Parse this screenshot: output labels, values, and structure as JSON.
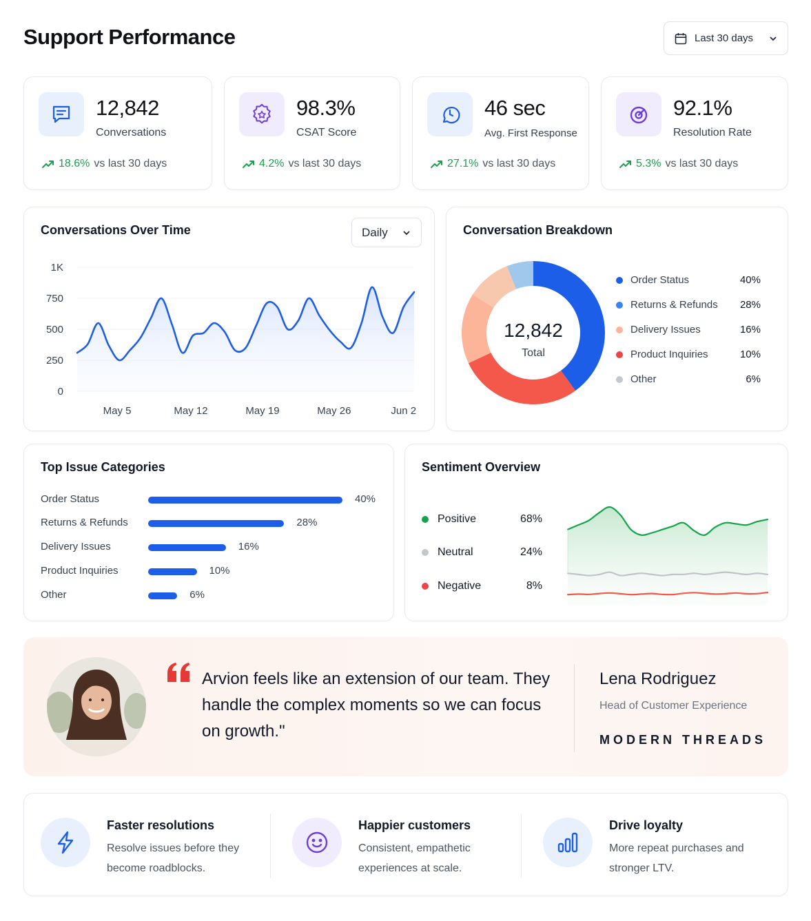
{
  "header": {
    "title": "Support Performance",
    "date_range": "Last 30 days"
  },
  "kpis": [
    {
      "value": "12,842",
      "label": "Conversations",
      "delta": "18.6%",
      "delta_suffix": "vs last 30 days",
      "icon": "chat-icon"
    },
    {
      "value": "98.3%",
      "label": "CSAT Score",
      "delta": "4.2%",
      "delta_suffix": "vs last 30 days",
      "icon": "star-badge-icon"
    },
    {
      "value": "46 sec",
      "label": "Avg. First Response",
      "delta": "27.1%",
      "delta_suffix": "vs last 30 days",
      "icon": "clock-chat-icon"
    },
    {
      "value": "92.1%",
      "label": "Resolution Rate",
      "delta": "5.3%",
      "delta_suffix": "vs last 30 days",
      "icon": "target-icon"
    }
  ],
  "colors": {
    "accent_blue": "#1d5ee8",
    "positive": "#16a34a",
    "negative": "#ef4444",
    "neutral": "#c4c7cc",
    "quote_red": "#e53935"
  },
  "conversations_chart": {
    "title": "Conversations Over Time",
    "granularity": "Daily"
  },
  "chart_data": [
    {
      "type": "area",
      "title": "Conversations Over Time",
      "ylim": [
        0,
        1000
      ],
      "y_ticks": [
        "0",
        "250",
        "500",
        "750",
        "1K"
      ],
      "y_tick_values": [
        0,
        250,
        500,
        750,
        1000
      ],
      "x_tick_labels": [
        "May 5",
        "May 12",
        "May 19",
        "May 26",
        "Jun 2"
      ],
      "x_tick_positions": [
        3.8,
        10.8,
        17.6,
        24.4,
        31.0
      ],
      "grid": true,
      "x": [
        0,
        1,
        2,
        3,
        4,
        5,
        6,
        7,
        8,
        9,
        10,
        11,
        12,
        13,
        14,
        15,
        16,
        17,
        18,
        19,
        20,
        21,
        22,
        23,
        24,
        25,
        26,
        27,
        28,
        29,
        30,
        31,
        32
      ],
      "values": [
        310,
        380,
        550,
        370,
        250,
        330,
        430,
        590,
        750,
        540,
        310,
        450,
        470,
        550,
        480,
        330,
        350,
        530,
        710,
        680,
        500,
        570,
        750,
        610,
        490,
        400,
        350,
        550,
        840,
        600,
        470,
        680,
        800
      ]
    },
    {
      "type": "pie",
      "title": "Conversation Breakdown",
      "center_value": "12,842",
      "center_label": "Total",
      "categories": [
        "Order Status",
        "Returns & Refunds",
        "Delivery Issues",
        "Product Inquiries",
        "Other"
      ],
      "values": [
        40,
        28,
        16,
        10,
        6
      ],
      "labels": [
        "40%",
        "28%",
        "16%",
        "10%",
        "6%"
      ],
      "colors": [
        "#1d5ee8",
        "#f4584a",
        "#fdb59a",
        "#f7c8ae",
        "#9fc8ec"
      ],
      "legend_colors": [
        "#1d5ee8",
        "#3b82f6",
        "#fdb59a",
        "#ef4444",
        "#c4c7cc"
      ],
      "legend": "right"
    },
    {
      "type": "bar",
      "title": "Top Issue Categories",
      "categories": [
        "Order Status",
        "Returns & Refunds",
        "Delivery Issues",
        "Product Inquiries",
        "Other"
      ],
      "values": [
        40,
        28,
        16,
        10,
        6
      ],
      "labels": [
        "40%",
        "28%",
        "16%",
        "10%",
        "6%"
      ]
    },
    {
      "type": "area",
      "title": "Sentiment Overview",
      "legend": "left",
      "series": [
        {
          "name": "Positive",
          "pct": "68%",
          "color": "#16a34a",
          "values": [
            64,
            68,
            72,
            79,
            84,
            77,
            64,
            59,
            61,
            64,
            67,
            70,
            63,
            59,
            66,
            70,
            69,
            68,
            71,
            73
          ]
        },
        {
          "name": "Neutral",
          "pct": "24%",
          "color": "#bfc3c9",
          "values": [
            25,
            24,
            23,
            24,
            26,
            23,
            24,
            25,
            24,
            23,
            24,
            24,
            25,
            24,
            25,
            26,
            25,
            24,
            25,
            24
          ]
        },
        {
          "name": "Negative",
          "pct": "8%",
          "color": "#f4584a",
          "values": [
            6,
            6.5,
            6.2,
            7,
            7.5,
            6.8,
            6,
            6.5,
            7,
            6.2,
            6.1,
            7.2,
            7.8,
            7.1,
            6.5,
            6.8,
            7.5,
            6.8,
            6.9,
            8
          ]
        }
      ]
    }
  ],
  "breakdown": {
    "title": "Conversation Breakdown",
    "center_value": "12,842",
    "center_label": "Total",
    "items": [
      {
        "name": "Order Status",
        "pct": "40%"
      },
      {
        "name": "Returns & Refunds",
        "pct": "28%"
      },
      {
        "name": "Delivery Issues",
        "pct": "16%"
      },
      {
        "name": "Product Inquiries",
        "pct": "10%"
      },
      {
        "name": "Other",
        "pct": "6%"
      }
    ]
  },
  "issues": {
    "title": "Top Issue Categories",
    "items": [
      {
        "name": "Order Status",
        "pct": "40%"
      },
      {
        "name": "Returns & Refunds",
        "pct": "28%"
      },
      {
        "name": "Delivery Issues",
        "pct": "16%"
      },
      {
        "name": "Product Inquiries",
        "pct": "10%"
      },
      {
        "name": "Other",
        "pct": "6%"
      }
    ]
  },
  "sentiment": {
    "title": "Sentiment Overview",
    "items": [
      {
        "name": "Positive",
        "pct": "68%"
      },
      {
        "name": "Neutral",
        "pct": "24%"
      },
      {
        "name": "Negative",
        "pct": "8%"
      }
    ]
  },
  "testimonial": {
    "quote": "Arvion feels like an extension of our team. They handle the complex moments so we can focus on growth.\"",
    "name": "Lena Rodriguez",
    "role": "Head of Customer Experience",
    "company": "MODERN THREADS"
  },
  "features": [
    {
      "title": "Faster resolutions",
      "desc": "Resolve issues before they become roadblocks.",
      "icon": "lightning-icon"
    },
    {
      "title": "Happier customers",
      "desc": "Consistent, empathetic experiences at scale.",
      "icon": "smile-icon"
    },
    {
      "title": "Drive loyalty",
      "desc": "More repeat purchases and stronger LTV.",
      "icon": "bar-chart-icon"
    }
  ]
}
